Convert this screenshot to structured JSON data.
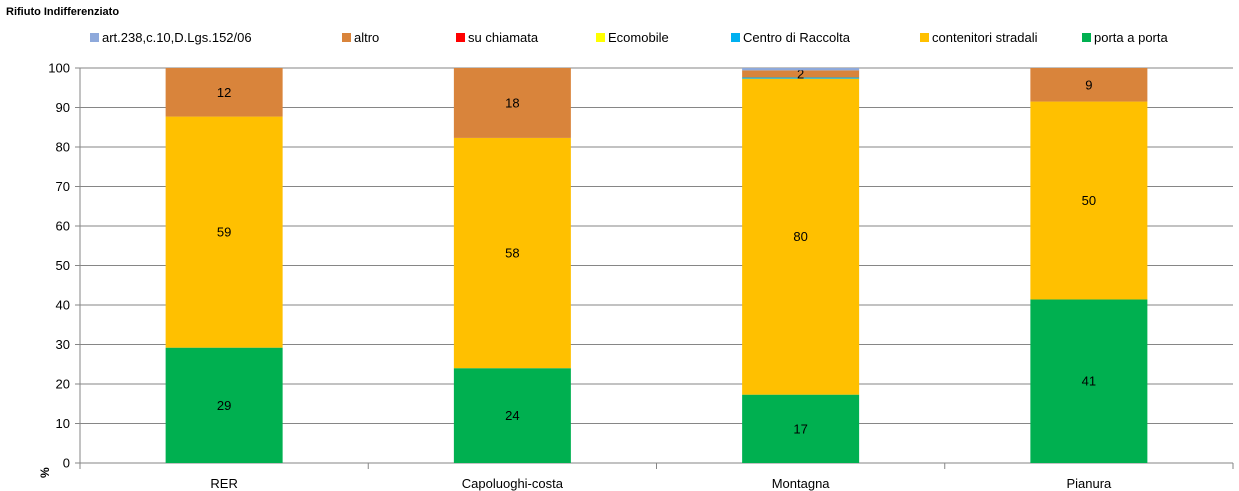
{
  "chart_data": {
    "type": "bar",
    "stacked": true,
    "title": "Rifiuto  Indifferenziato",
    "ylabel": "%",
    "ylim": [
      0,
      100
    ],
    "yticks": [
      0,
      10,
      20,
      30,
      40,
      50,
      60,
      70,
      80,
      90,
      100
    ],
    "grid": true,
    "legend_position": "top",
    "categories": [
      "RER",
      "Capoluoghi-costa",
      "Montagna",
      "Pianura"
    ],
    "series": [
      {
        "name": "porta a porta",
        "color": "#00B050",
        "values": [
          29.2,
          24.0,
          17.3,
          41.4
        ],
        "labels": [
          "29",
          "24",
          "17",
          "41"
        ]
      },
      {
        "name": "contenitori stradali",
        "color": "#FFC000",
        "values": [
          58.5,
          58.3,
          80.0,
          50.1
        ],
        "labels": [
          "59",
          "58",
          "80",
          "50"
        ]
      },
      {
        "name": "Centro di Raccolta",
        "color": "#00B0F0",
        "values": [
          0,
          0,
          0.3,
          0
        ],
        "labels": [
          "",
          "",
          "",
          ""
        ]
      },
      {
        "name": "Ecomobile",
        "color": "#FFFF00",
        "values": [
          0,
          0,
          0,
          0
        ],
        "labels": [
          "",
          "",
          "",
          ""
        ]
      },
      {
        "name": "su chiamata",
        "color": "#FF0000",
        "values": [
          0,
          0,
          0,
          0
        ],
        "labels": [
          "",
          "",
          "",
          ""
        ]
      },
      {
        "name": "altro",
        "color": "#D9843B",
        "values": [
          12.3,
          17.7,
          1.8,
          8.5
        ],
        "labels": [
          "12",
          "18",
          "2",
          "9"
        ]
      },
      {
        "name": "art.238,c.10,D.Lgs.152/06",
        "color": "#8EA9DB",
        "values": [
          0,
          0,
          0.6,
          0
        ],
        "labels": [
          "",
          "",
          "",
          ""
        ]
      }
    ],
    "legend_order": [
      "art.238,c.10,D.Lgs.152/06",
      "altro",
      "su chiamata",
      "Ecomobile",
      "Centro di Raccolta",
      "contenitori stradali",
      "porta a porta"
    ]
  }
}
